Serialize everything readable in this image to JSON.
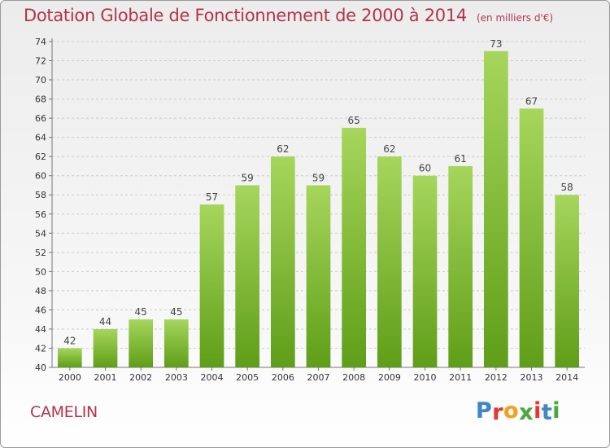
{
  "header": {
    "title": "Dotation Globale de Fonctionnement de 2000 à 2014",
    "unit": "(en milliers d'€)"
  },
  "footer": {
    "commune": "CAMELIN",
    "logo_letters": [
      "P",
      "r",
      "o",
      "x",
      "i",
      "t",
      "i"
    ],
    "logo_colors": [
      "#3f86c6",
      "#e2382e",
      "#f0a21b",
      "#4aa93c",
      "#e2382e",
      "#3f86c6",
      "#4aa93c"
    ]
  },
  "colors": {
    "bar_top": "#a6d65c",
    "bar_bottom": "#5f9e18",
    "grid": "#cccccc",
    "title": "#b3334d"
  },
  "chart_data": {
    "type": "bar",
    "title": "Dotation Globale de Fonctionnement de 2000 à 2014",
    "subtitle": "(en milliers d'€)",
    "xlabel": "",
    "ylabel": "",
    "categories": [
      "2000",
      "2001",
      "2002",
      "2003",
      "2004",
      "2005",
      "2006",
      "2007",
      "2008",
      "2009",
      "2010",
      "2011",
      "2012",
      "2013",
      "2014"
    ],
    "values": [
      42,
      44,
      45,
      45,
      57,
      59,
      62,
      59,
      65,
      62,
      60,
      61,
      73,
      67,
      58
    ],
    "ylim": [
      40,
      74
    ],
    "yticks": [
      40,
      42,
      44,
      46,
      48,
      50,
      52,
      54,
      56,
      58,
      60,
      62,
      64,
      66,
      68,
      70,
      72,
      74
    ],
    "grid": true,
    "data_labels": true
  }
}
